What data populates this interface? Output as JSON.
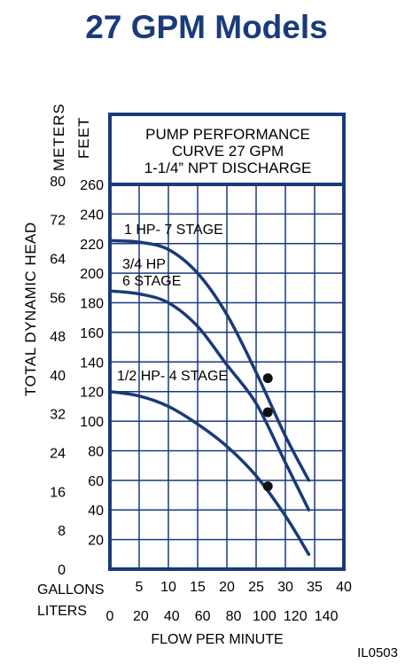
{
  "page": {
    "title": "27 GPM Models",
    "image_code": "IL0503"
  },
  "colors": {
    "frame": "#1a3a7a",
    "curve": "#1a3a7a",
    "text": "#000000",
    "title": "#1a3a7a"
  },
  "chart_data": {
    "type": "line",
    "box_title": [
      "PUMP PERFORMANCE",
      "CURVE 27 GPM",
      "1-1/4” NPT DISCHARGE"
    ],
    "xlabel": "FLOW PER MINUTE",
    "ylabel": "TOTAL DYNAMIC HEAD",
    "x_axes": [
      {
        "label": "GALLONS",
        "ticks": [
          "5",
          "10",
          "15",
          "20",
          "25",
          "30",
          "35",
          "40"
        ]
      },
      {
        "label": "LITERS",
        "ticks": [
          "0",
          "20",
          "40",
          "60",
          "80",
          "100",
          "120",
          "140"
        ]
      }
    ],
    "y_axes": [
      {
        "label": "METERS",
        "ticks": [
          "0",
          "8",
          "16",
          "24",
          "32",
          "40",
          "48",
          "56",
          "64",
          "72",
          "80"
        ]
      },
      {
        "label": "FEET",
        "ticks": [
          "20",
          "40",
          "60",
          "80",
          "100",
          "120",
          "140",
          "160",
          "180",
          "200",
          "220",
          "240",
          "260"
        ]
      }
    ],
    "xlim": [
      0,
      40
    ],
    "ylim": [
      0,
      260
    ],
    "grid": true,
    "series": [
      {
        "name": "1 HP- 7 STAGE",
        "label_lines": [
          "1 HP- 7 STAGE"
        ],
        "x": [
          0,
          5,
          10,
          15,
          20,
          25,
          30,
          34
        ],
        "y": [
          222,
          221,
          216,
          200,
          172,
          133,
          90,
          60
        ],
        "marker": {
          "x": 27,
          "y": 129
        }
      },
      {
        "name": "3/4 HP 6 STAGE",
        "label_lines": [
          "3/4 HP",
          "6 STAGE"
        ],
        "x": [
          0,
          5,
          10,
          15,
          20,
          25,
          30,
          34
        ],
        "y": [
          188,
          186,
          180,
          164,
          138,
          112,
          72,
          40
        ],
        "marker": {
          "x": 27,
          "y": 106
        }
      },
      {
        "name": "1/2 HP- 4 STAGE",
        "label_lines": [
          "1/2 HP- 4 STAGE"
        ],
        "x": [
          0,
          5,
          10,
          15,
          20,
          25,
          30,
          34
        ],
        "y": [
          120,
          117,
          110,
          98,
          83,
          63,
          36,
          10
        ],
        "marker": {
          "x": 27,
          "y": 56
        }
      }
    ]
  }
}
